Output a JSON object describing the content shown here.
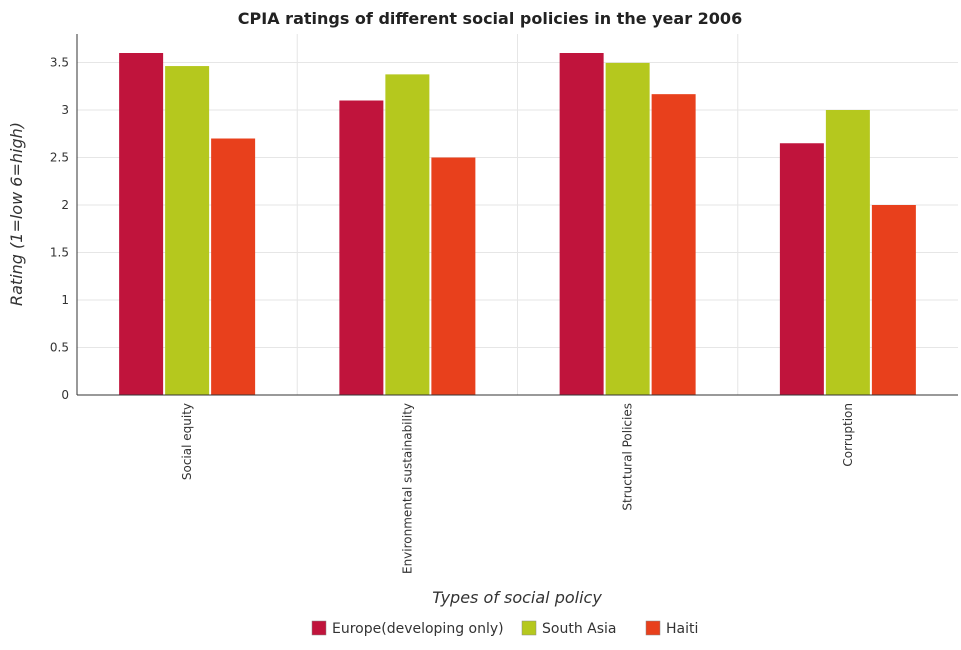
{
  "chart_data": {
    "type": "bar",
    "title": "CPIA ratings of different social policies in the year 2006",
    "xlabel": "Types of social policy",
    "ylabel": "Rating (1=low 6=high)",
    "categories": [
      "Social equity",
      "Environmental sustainability",
      "Structural Policies",
      "Corruption"
    ],
    "ylim": [
      0,
      3.8
    ],
    "yticks": [
      "0",
      "0.5",
      "1",
      "1.5",
      "2",
      "2.5",
      "3",
      "3.5"
    ],
    "grid": true,
    "legend_position": "bottom",
    "series": [
      {
        "name": "Europe(developing only)",
        "color": "#c0143c",
        "values": [
          3.6,
          3.1,
          3.6,
          2.65
        ]
      },
      {
        "name": "South Asia",
        "color": "#b5c81e",
        "values": [
          3.4625,
          3.375,
          3.4958,
          3.0
        ]
      },
      {
        "name": "Haiti",
        "color": "#e8401c",
        "values": [
          2.7,
          2.5,
          3.1667,
          2.0
        ]
      }
    ]
  }
}
